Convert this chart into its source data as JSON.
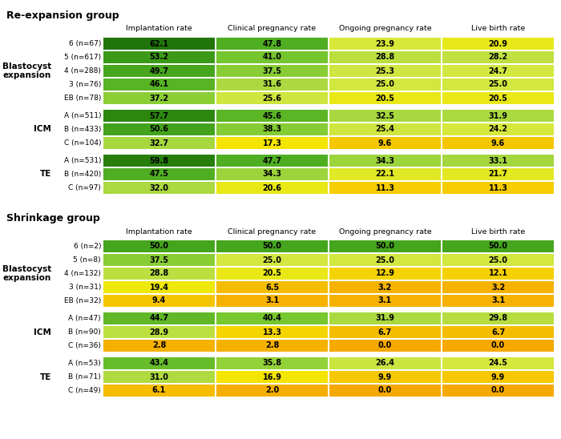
{
  "title_reexpansion": "Re-expansion group",
  "title_shrinkage": "Shrinkage group",
  "col_headers": [
    "Implantation rate",
    "Clinical pregnancy rate",
    "Ongoing pregnancy rate",
    "Live birth rate"
  ],
  "reexpansion": {
    "sections": [
      {
        "label": "Blastocyst\nexpansion",
        "rows": [
          {
            "sublabel": "6 (n=67)",
            "vals": [
              62.1,
              47.8,
              23.9,
              20.9
            ]
          },
          {
            "sublabel": "5 (n=617)",
            "vals": [
              53.2,
              41.0,
              28.8,
              28.2
            ]
          },
          {
            "sublabel": "4 (n=288)",
            "vals": [
              49.7,
              37.5,
              25.3,
              24.7
            ]
          },
          {
            "sublabel": "3 (n=76)",
            "vals": [
              46.1,
              31.6,
              25.0,
              25.0
            ]
          },
          {
            "sublabel": "EB (n=78)",
            "vals": [
              37.2,
              25.6,
              20.5,
              20.5
            ]
          }
        ]
      },
      {
        "label": "ICM",
        "rows": [
          {
            "sublabel": "A (n=511)",
            "vals": [
              57.7,
              45.6,
              32.5,
              31.9
            ]
          },
          {
            "sublabel": "B (n=433)",
            "vals": [
              50.6,
              38.3,
              25.4,
              24.2
            ]
          },
          {
            "sublabel": "C (n=104)",
            "vals": [
              32.7,
              17.3,
              9.6,
              9.6
            ]
          }
        ]
      },
      {
        "label": "TE",
        "rows": [
          {
            "sublabel": "A (n=531)",
            "vals": [
              59.8,
              47.7,
              34.3,
              33.1
            ]
          },
          {
            "sublabel": "B (n=420)",
            "vals": [
              47.5,
              34.3,
              22.1,
              21.7
            ]
          },
          {
            "sublabel": "C (n=97)",
            "vals": [
              32.0,
              20.6,
              11.3,
              11.3
            ]
          }
        ]
      }
    ]
  },
  "shrinkage": {
    "sections": [
      {
        "label": "Blastocyst\nexpansion",
        "rows": [
          {
            "sublabel": "6 (n=2)",
            "vals": [
              50.0,
              50.0,
              50.0,
              50.0
            ]
          },
          {
            "sublabel": "5 (n=8)",
            "vals": [
              37.5,
              25.0,
              25.0,
              25.0
            ]
          },
          {
            "sublabel": "4 (n=132)",
            "vals": [
              28.8,
              20.5,
              12.9,
              12.1
            ]
          },
          {
            "sublabel": "3 (n=31)",
            "vals": [
              19.4,
              6.5,
              3.2,
              3.2
            ]
          },
          {
            "sublabel": "EB (n=32)",
            "vals": [
              9.4,
              3.1,
              3.1,
              3.1
            ]
          }
        ]
      },
      {
        "label": "ICM",
        "rows": [
          {
            "sublabel": "A (n=47)",
            "vals": [
              44.7,
              40.4,
              31.9,
              29.8
            ]
          },
          {
            "sublabel": "B (n=90)",
            "vals": [
              28.9,
              13.3,
              6.7,
              6.7
            ]
          },
          {
            "sublabel": "C (n=36)",
            "vals": [
              2.8,
              2.8,
              0.0,
              0.0
            ]
          }
        ]
      },
      {
        "label": "TE",
        "rows": [
          {
            "sublabel": "A (n=53)",
            "vals": [
              43.4,
              35.8,
              26.4,
              24.5
            ]
          },
          {
            "sublabel": "B (n=71)",
            "vals": [
              31.0,
              16.9,
              9.9,
              9.9
            ]
          },
          {
            "sublabel": "C (n=49)",
            "vals": [
              6.1,
              2.0,
              0.0,
              0.0
            ]
          }
        ]
      }
    ]
  },
  "bg_color": "#ffffff",
  "title_fontsize": 9,
  "header_fontsize": 6.8,
  "label_fontsize": 7.5,
  "sublabel_fontsize": 6.5,
  "cell_fontsize": 7.0,
  "color_stops": [
    [
      0.0,
      "#f5a800"
    ],
    [
      0.15,
      "#f5c800"
    ],
    [
      0.28,
      "#f5e800"
    ],
    [
      0.38,
      "#d4e840"
    ],
    [
      0.5,
      "#a8d840"
    ],
    [
      0.62,
      "#78c830"
    ],
    [
      0.75,
      "#4aaa20"
    ],
    [
      0.88,
      "#2e8a10"
    ],
    [
      1.0,
      "#1a6808"
    ]
  ],
  "vmin": 0,
  "vmax": 65
}
